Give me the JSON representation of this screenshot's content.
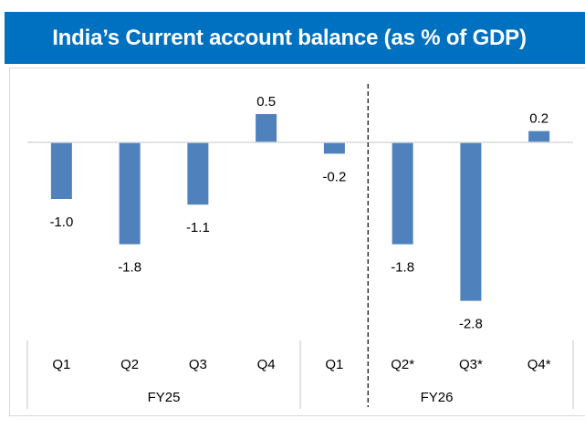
{
  "title": "India’s Current account balance (as % of GDP)",
  "colors": {
    "title_bg": "#0070C0",
    "title_text": "#FFFFFF",
    "bar": "#4F81BD",
    "axis": "#D9D9D9",
    "divider": "#000000"
  },
  "chart_data": {
    "type": "bar",
    "title": "India’s Current account balance (as % of GDP)",
    "xlabel": "",
    "ylabel": "",
    "categories": [
      "Q1",
      "Q2",
      "Q3",
      "Q4",
      "Q1",
      "Q2*",
      "Q3*",
      "Q4*"
    ],
    "groups": [
      {
        "label": "FY25",
        "start": 0,
        "end": 3
      },
      {
        "label": "FY26",
        "start": 4,
        "end": 7
      }
    ],
    "values": [
      -1.0,
      -1.8,
      -1.1,
      0.5,
      -0.2,
      -1.8,
      -2.8,
      0.2
    ],
    "data_labels": [
      "-1.0",
      "-1.8",
      "-1.1",
      "0.5",
      "-0.2",
      "-1.8",
      "-2.8",
      "0.2"
    ],
    "ylim": [
      -3.5,
      1.3
    ],
    "grid": false,
    "legend": "none",
    "annotations": [
      "dashed vertical divider between FY26 Q1 and Q2*"
    ]
  }
}
